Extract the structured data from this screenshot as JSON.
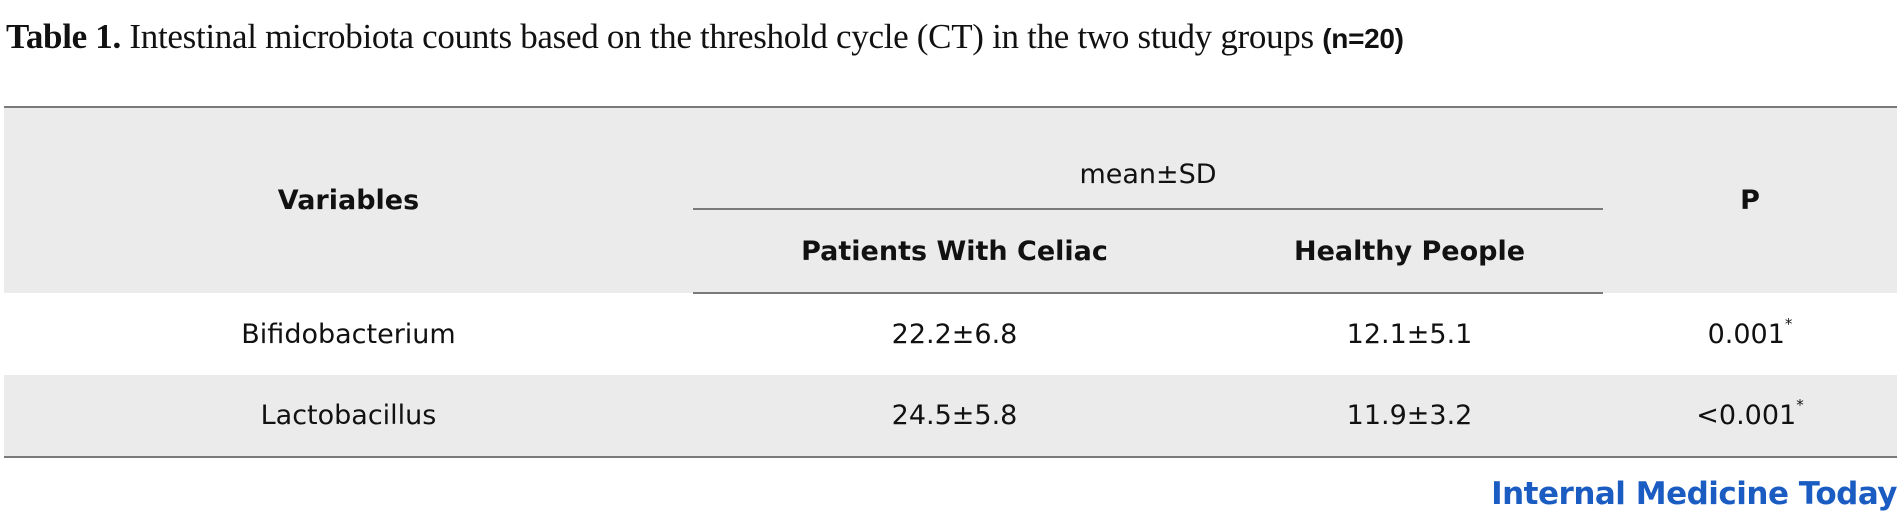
{
  "caption": {
    "label": "Table 1.",
    "text": "Intestinal microbiota counts based on the threshold cycle (CT) in the two study groups",
    "n": "(n=20)"
  },
  "table": {
    "headers": {
      "variables": "Variables",
      "group": "mean±SD",
      "col1": "Patients With Celiac",
      "col2": "Healthy People",
      "p": "P"
    },
    "rows": [
      {
        "variable": "Bifidobacterium",
        "patients": "22.2±6.8",
        "healthy": "12.1±5.1",
        "p": "0.001",
        "p_mark": "*"
      },
      {
        "variable": "Lactobacillus",
        "patients": "24.5±5.8",
        "healthy": "11.9±3.2",
        "p": "<0.001",
        "p_mark": "*"
      }
    ]
  },
  "brand": {
    "name": "Internal Medicine Today",
    "color": "#1a5cc2"
  },
  "colors": {
    "header_bg": "#ebebeb",
    "rule": "#7a7a7a"
  }
}
